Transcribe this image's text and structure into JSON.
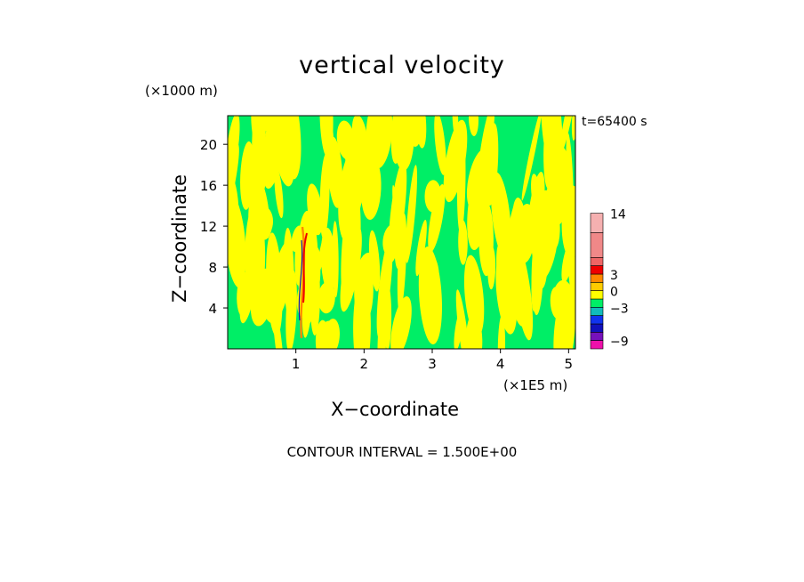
{
  "chart_data": {
    "type": "heatmap",
    "title": "vertical velocity",
    "xlabel": "X−coordinate",
    "ylabel": "Z−coordinate",
    "x_unit": "(×1E5 m)",
    "z_unit": "(×1000 m)",
    "time_label": "t=65400 s",
    "contour_label": "CONTOUR INTERVAL = 1.500E+00",
    "xlim": [
      0,
      5.1
    ],
    "ylim": [
      0,
      22.8
    ],
    "x_ticks": [
      "1",
      "2",
      "3",
      "4",
      "5"
    ],
    "y_ticks": [
      "4",
      "8",
      "12",
      "16",
      "20"
    ],
    "colorbar": {
      "tick_labels": [
        "14",
        "3",
        "0",
        "−3",
        "−9"
      ],
      "levels": [
        -10.5,
        -9,
        -7.5,
        -6,
        -4.5,
        -3,
        -1.5,
        0,
        1.5,
        3,
        4.5,
        6,
        10.5,
        14,
        18,
        21
      ],
      "colors": [
        "#ee11aa",
        "#7711bb",
        "#1111bb",
        "#1133ee",
        "#11bbbb",
        "#00ee66",
        "#ffff00",
        "#ffcc00",
        "#ff8800",
        "#ee0000",
        "#ee6666",
        "#f08888",
        "#f5b0b0"
      ]
    }
  }
}
